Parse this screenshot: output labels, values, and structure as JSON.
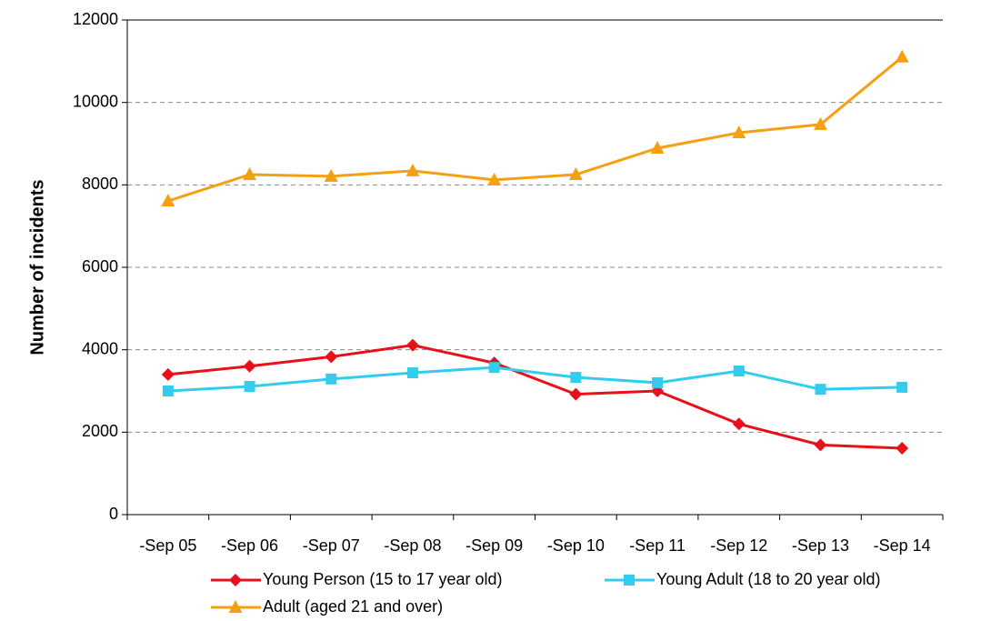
{
  "chart_data": {
    "type": "line",
    "y_label": "Number of incidents",
    "categories": [
      "-Sep 05",
      "-Sep 06",
      "-Sep 07",
      "-Sep 08",
      "-Sep 09",
      "-Sep 10",
      "-Sep 11",
      "-Sep 12",
      "-Sep 13",
      "-Sep 14"
    ],
    "series": [
      {
        "name": "Young Person (15 to 17 year old)",
        "color": "#e8101a",
        "marker": "diamond",
        "values": [
          3400,
          3600,
          3830,
          4110,
          3680,
          2920,
          3000,
          2200,
          1690,
          1610
        ]
      },
      {
        "name": "Young Adult (18 to 20 year old)",
        "color": "#33ccee",
        "marker": "square",
        "values": [
          3000,
          3110,
          3290,
          3440,
          3570,
          3330,
          3200,
          3485,
          3040,
          3090
        ]
      },
      {
        "name": "Adult (aged 21 and over)",
        "color": "#f5a010",
        "marker": "triangle",
        "values": [
          7610,
          8250,
          8210,
          8340,
          8120,
          8250,
          8890,
          9265,
          9465,
          11100
        ]
      }
    ],
    "ylim": [
      0,
      12000
    ],
    "yticks": [
      0,
      2000,
      4000,
      6000,
      8000,
      10000,
      12000
    ],
    "grid": true
  }
}
